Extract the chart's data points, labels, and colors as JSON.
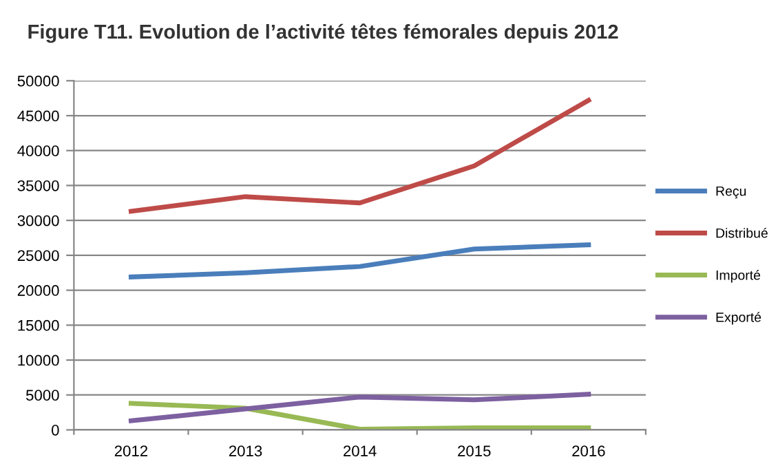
{
  "chart_data": {
    "type": "line",
    "title": "Figure T11. Evolution de l’activité têtes fémorales depuis 2012",
    "categories": [
      "2012",
      "2013",
      "2014",
      "2015",
      "2016"
    ],
    "series": [
      {
        "name": "Reçu",
        "color": "#4a7ebb",
        "values": [
          21900,
          22500,
          23400,
          25900,
          26500
        ]
      },
      {
        "name": "Distribué",
        "color": "#be4b48",
        "values": [
          31300,
          33400,
          32500,
          37800,
          47200
        ]
      },
      {
        "name": "Importé",
        "color": "#98b954",
        "values": [
          3800,
          3100,
          100,
          300,
          300
        ]
      },
      {
        "name": "Exporté",
        "color": "#7d60a0",
        "values": [
          1300,
          3000,
          4700,
          4300,
          5100
        ]
      }
    ],
    "ylim": [
      0,
      50000
    ],
    "yticks": [
      0,
      5000,
      10000,
      15000,
      20000,
      25000,
      30000,
      35000,
      40000,
      45000,
      50000
    ],
    "grid": "y",
    "legend": "right",
    "marker": "none",
    "line_style": "solid"
  }
}
